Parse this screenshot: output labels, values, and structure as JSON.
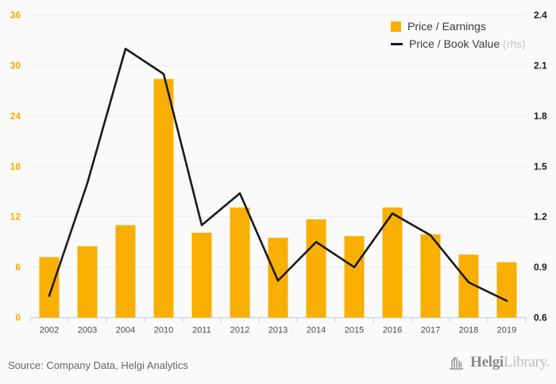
{
  "colors": {
    "background": "#FAFAFA",
    "gridline": "#E9E9E9",
    "axis": "#C9D6E4",
    "bar": "#F9AF02",
    "line": "#1A1A1A",
    "left_labels": "#F8A800",
    "right_labels": "#1A1A1A",
    "year_labels": "#4a4a4a",
    "legend_text": "#3a3a3a",
    "rhs_note": "#c6c6c6",
    "source_text": "#666666",
    "logo_dark": "#8a8a8a",
    "logo_light": "#bdbdbd"
  },
  "chart_data": {
    "type": "bar",
    "subtype": "combo-bar-line-dual-axis",
    "title": "",
    "categories": [
      "2002",
      "2003",
      "2004",
      "2010",
      "2011",
      "2012",
      "2013",
      "2014",
      "2015",
      "2016",
      "2017",
      "2018",
      "2019"
    ],
    "series": [
      {
        "name": "Price / Earnings",
        "type": "bar",
        "axis": "left",
        "color": "#F9AF02",
        "values": [
          7.2,
          8.5,
          11.0,
          28.4,
          10.1,
          13.1,
          9.5,
          11.7,
          9.7,
          13.1,
          9.9,
          7.5,
          6.6
        ]
      },
      {
        "name": "Price / Book Value",
        "type": "line",
        "axis": "right",
        "axis_note": " (rhs)",
        "color": "#1A1A1A",
        "values": [
          0.73,
          1.4,
          2.2,
          2.05,
          1.15,
          1.34,
          0.82,
          1.05,
          0.9,
          1.22,
          1.09,
          0.81,
          0.7
        ]
      }
    ],
    "left_axis": {
      "min": 0,
      "max": 36,
      "step": 6,
      "ticks": [
        "0",
        "6",
        "12",
        "18",
        "24",
        "30",
        "36"
      ],
      "color": "#F8A800"
    },
    "right_axis": {
      "min": 0.6,
      "max": 2.4,
      "step": 0.3,
      "ticks": [
        "0.6",
        "0.9",
        "1.2",
        "1.5",
        "1.8",
        "2.1",
        "2.4"
      ],
      "color": "#1A1A1A"
    },
    "grid": true,
    "legend_position": "top-right"
  },
  "footer": {
    "source": "Source: Company Data, Helgi Analytics",
    "logo": {
      "brand_bold": "Helgi",
      "brand_light": "Library."
    }
  }
}
